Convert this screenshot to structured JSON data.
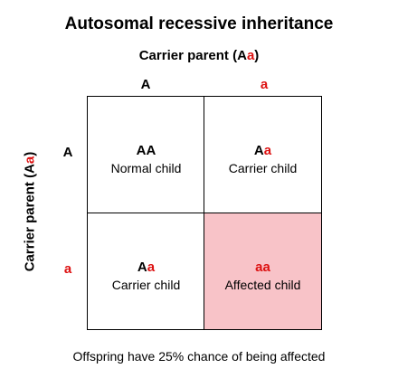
{
  "title": "Autosomal recessive inheritance",
  "top_parent": {
    "label": "Carrier parent (",
    "allele1": "A",
    "allele2": "a",
    "close": ")"
  },
  "side_parent": {
    "label": "Carrier parent (",
    "allele1": "A",
    "allele2": "a",
    "close": ")"
  },
  "column_alleles": [
    "A",
    "a"
  ],
  "row_alleles": [
    "A",
    "a"
  ],
  "cells": [
    {
      "allele1": "A",
      "allele2": "A",
      "phenotype": "Normal child"
    },
    {
      "allele1": "A",
      "allele2": "a",
      "phenotype": "Carrier child"
    },
    {
      "allele1": "A",
      "allele2": "a",
      "phenotype": "Carrier child"
    },
    {
      "allele1": "a",
      "allele2": "a",
      "phenotype": "Affected child"
    }
  ],
  "colors": {
    "recessive_allele": "#dd1111",
    "affected_fill": "#f8c3c8",
    "border": "#000000"
  },
  "footer": "Offspring have 25% chance of being affected"
}
